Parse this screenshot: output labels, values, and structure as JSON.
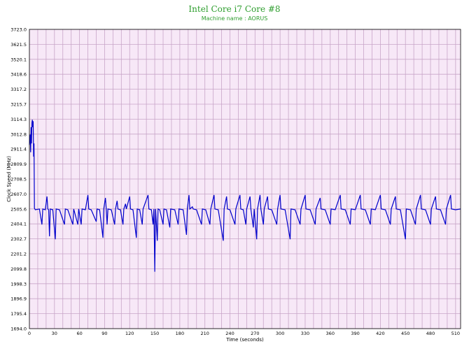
{
  "chart_data": {
    "type": "line",
    "title": "Intel Core i7 Core #8",
    "subtitle": "Machine name : AORUS",
    "xlabel": "Time (seconds)",
    "ylabel": "Clock Speed (MHz)",
    "xlim": [
      0,
      516
    ],
    "ylim": [
      1694.0,
      3723.0
    ],
    "x_ticks": [
      0,
      30,
      60,
      90,
      120,
      150,
      180,
      210,
      240,
      270,
      300,
      330,
      360,
      390,
      420,
      450,
      480,
      510
    ],
    "y_ticks": [
      1694.0,
      1795.4,
      1896.9,
      1998.3,
      2099.8,
      2201.2,
      2302.7,
      2404.1,
      2505.6,
      2607.0,
      2708.5,
      2809.9,
      2911.4,
      3012.8,
      3114.3,
      3215.7,
      3317.2,
      3418.6,
      3520.1,
      3621.5,
      3723.0
    ],
    "grid": true,
    "colors": {
      "plot_bg": "#f7e8f7",
      "grid": "#c8a5c8",
      "line": "#0000cc",
      "title": "#2e9e2e"
    },
    "series": [
      {
        "baseline": 2500,
        "points": [
          [
            0,
            2940
          ],
          [
            1,
            3010
          ],
          [
            1.5,
            2890
          ],
          [
            2,
            3060
          ],
          [
            2.5,
            2950
          ],
          [
            3,
            3090
          ],
          [
            3.5,
            3110
          ],
          [
            4,
            3060
          ],
          [
            4.5,
            3100
          ],
          [
            5,
            2860
          ],
          [
            5.5,
            2950
          ],
          [
            6,
            2510
          ],
          [
            7,
            2500
          ],
          [
            12,
            2505
          ],
          [
            15,
            2400
          ],
          [
            16,
            2505
          ],
          [
            19,
            2500
          ],
          [
            21,
            2590
          ],
          [
            22,
            2505
          ],
          [
            23,
            2500
          ],
          [
            24,
            2320
          ],
          [
            25,
            2505
          ],
          [
            28,
            2500
          ],
          [
            31,
            2300
          ],
          [
            32,
            2505
          ],
          [
            36,
            2500
          ],
          [
            42,
            2400
          ],
          [
            43,
            2505
          ],
          [
            46,
            2500
          ],
          [
            52,
            2400
          ],
          [
            53,
            2505
          ],
          [
            58,
            2400
          ],
          [
            59,
            2505
          ],
          [
            62,
            2400
          ],
          [
            63,
            2505
          ],
          [
            67,
            2500
          ],
          [
            70,
            2600
          ],
          [
            71,
            2505
          ],
          [
            74,
            2500
          ],
          [
            80,
            2420
          ],
          [
            81,
            2505
          ],
          [
            84,
            2500
          ],
          [
            88,
            2310
          ],
          [
            89,
            2505
          ],
          [
            91,
            2580
          ],
          [
            92,
            2505
          ],
          [
            93,
            2400
          ],
          [
            94,
            2505
          ],
          [
            98,
            2500
          ],
          [
            102,
            2400
          ],
          [
            103,
            2505
          ],
          [
            105,
            2560
          ],
          [
            106,
            2505
          ],
          [
            109,
            2500
          ],
          [
            112,
            2400
          ],
          [
            113,
            2505
          ],
          [
            115,
            2540
          ],
          [
            116,
            2505
          ],
          [
            120,
            2590
          ],
          [
            121,
            2505
          ],
          [
            124,
            2500
          ],
          [
            128,
            2310
          ],
          [
            129,
            2505
          ],
          [
            132,
            2500
          ],
          [
            135,
            2400
          ],
          [
            136,
            2505
          ],
          [
            142,
            2600
          ],
          [
            143,
            2505
          ],
          [
            146,
            2500
          ],
          [
            148,
            2400
          ],
          [
            149,
            2505
          ],
          [
            150,
            2080
          ],
          [
            151,
            2505
          ],
          [
            153,
            2290
          ],
          [
            154,
            2505
          ],
          [
            156,
            2500
          ],
          [
            160,
            2400
          ],
          [
            161,
            2505
          ],
          [
            164,
            2500
          ],
          [
            168,
            2380
          ],
          [
            169,
            2505
          ],
          [
            174,
            2500
          ],
          [
            178,
            2400
          ],
          [
            179,
            2505
          ],
          [
            184,
            2500
          ],
          [
            188,
            2330
          ],
          [
            189,
            2505
          ],
          [
            191,
            2600
          ],
          [
            192,
            2505
          ],
          [
            195,
            2520
          ],
          [
            196,
            2505
          ],
          [
            200,
            2500
          ],
          [
            206,
            2400
          ],
          [
            207,
            2505
          ],
          [
            211,
            2500
          ],
          [
            216,
            2400
          ],
          [
            217,
            2505
          ],
          [
            221,
            2600
          ],
          [
            222,
            2505
          ],
          [
            226,
            2500
          ],
          [
            232,
            2290
          ],
          [
            233,
            2505
          ],
          [
            236,
            2590
          ],
          [
            237,
            2505
          ],
          [
            240,
            2500
          ],
          [
            246,
            2400
          ],
          [
            247,
            2505
          ],
          [
            252,
            2600
          ],
          [
            253,
            2505
          ],
          [
            256,
            2500
          ],
          [
            259,
            2400
          ],
          [
            260,
            2505
          ],
          [
            264,
            2590
          ],
          [
            265,
            2505
          ],
          [
            268,
            2380
          ],
          [
            269,
            2505
          ],
          [
            272,
            2300
          ],
          [
            273,
            2505
          ],
          [
            276,
            2600
          ],
          [
            277,
            2505
          ],
          [
            280,
            2400
          ],
          [
            281,
            2505
          ],
          [
            285,
            2590
          ],
          [
            286,
            2505
          ],
          [
            290,
            2500
          ],
          [
            296,
            2400
          ],
          [
            297,
            2505
          ],
          [
            300,
            2600
          ],
          [
            301,
            2505
          ],
          [
            306,
            2500
          ],
          [
            312,
            2300
          ],
          [
            313,
            2505
          ],
          [
            318,
            2500
          ],
          [
            324,
            2400
          ],
          [
            325,
            2505
          ],
          [
            330,
            2600
          ],
          [
            331,
            2505
          ],
          [
            336,
            2500
          ],
          [
            342,
            2400
          ],
          [
            343,
            2505
          ],
          [
            348,
            2580
          ],
          [
            349,
            2505
          ],
          [
            354,
            2500
          ],
          [
            360,
            2400
          ],
          [
            361,
            2505
          ],
          [
            366,
            2500
          ],
          [
            372,
            2600
          ],
          [
            373,
            2505
          ],
          [
            378,
            2500
          ],
          [
            384,
            2400
          ],
          [
            385,
            2505
          ],
          [
            390,
            2500
          ],
          [
            396,
            2600
          ],
          [
            397,
            2505
          ],
          [
            402,
            2500
          ],
          [
            408,
            2400
          ],
          [
            409,
            2505
          ],
          [
            414,
            2500
          ],
          [
            420,
            2600
          ],
          [
            421,
            2505
          ],
          [
            426,
            2500
          ],
          [
            432,
            2400
          ],
          [
            433,
            2505
          ],
          [
            438,
            2590
          ],
          [
            439,
            2505
          ],
          [
            444,
            2500
          ],
          [
            450,
            2300
          ],
          [
            451,
            2505
          ],
          [
            456,
            2500
          ],
          [
            462,
            2400
          ],
          [
            463,
            2505
          ],
          [
            468,
            2600
          ],
          [
            469,
            2505
          ],
          [
            474,
            2500
          ],
          [
            480,
            2400
          ],
          [
            481,
            2505
          ],
          [
            486,
            2590
          ],
          [
            487,
            2505
          ],
          [
            492,
            2500
          ],
          [
            498,
            2400
          ],
          [
            499,
            2505
          ],
          [
            504,
            2600
          ],
          [
            505,
            2505
          ],
          [
            510,
            2500
          ],
          [
            516,
            2505
          ]
        ]
      }
    ]
  }
}
